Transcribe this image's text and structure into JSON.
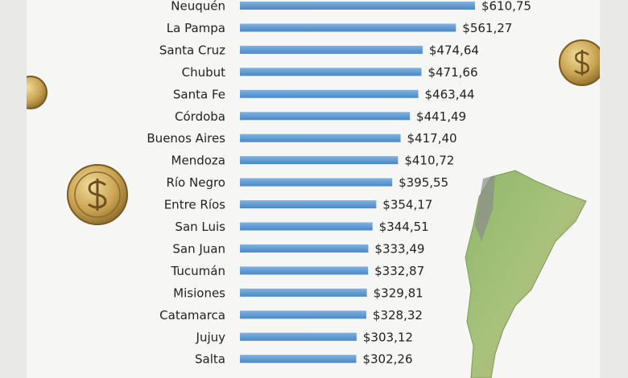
{
  "chart_data": {
    "type": "hbar",
    "categories": [
      "Neuquén",
      "La Pampa",
      "Santa Cruz",
      "Chubut",
      "Santa Fe",
      "Córdoba",
      "Buenos Aires",
      "Mendoza",
      "Río Negro",
      "Entre Ríos",
      "San Luis",
      "San Juan",
      "Tucumán",
      "Misiones",
      "Catamarca",
      "Jujuy",
      "Salta"
    ],
    "values": [
      610.75,
      561.27,
      474.64,
      471.66,
      463.44,
      441.49,
      417.4,
      410.72,
      395.55,
      354.17,
      344.51,
      333.49,
      332.87,
      329.81,
      328.32,
      303.12,
      302.26
    ],
    "value_labels": [
      "$610,75",
      "$561,27",
      "$474,64",
      "$471,66",
      "$463,44",
      "$441,49",
      "$417,40",
      "$410,72",
      "$395,55",
      "$354,17",
      "$344,51",
      "$333,49",
      "$332,87",
      "$329,81",
      "$328,32",
      "$303,12",
      "$302,26"
    ],
    "color": "#5b9bd5"
  }
}
